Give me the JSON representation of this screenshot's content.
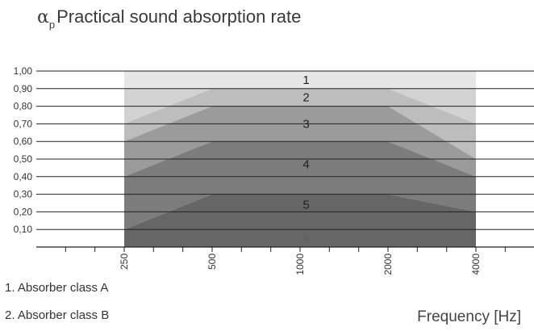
{
  "chart_data": {
    "type": "area",
    "title_symbol": "α",
    "title_subscript": "p",
    "title_text": "Practical sound absorption rate",
    "xlabel": "Frequency [Hz]",
    "x_categories": [
      "250",
      "500",
      "1000",
      "2000",
      "4000"
    ],
    "y_ticks": [
      "1,00",
      "0,90",
      "0,80",
      "0,70",
      "0,60",
      "0,50",
      "0,40",
      "0,30",
      "0,20",
      "0,10"
    ],
    "ylim": [
      0,
      1.0
    ],
    "grid": true,
    "bands": [
      {
        "label": "1",
        "color": "#e6e6e6",
        "upper": [
          1.0,
          1.0,
          1.0,
          1.0,
          1.0
        ],
        "lower": [
          0.9,
          0.9,
          0.9,
          0.9,
          0.9
        ]
      },
      {
        "label": "2",
        "color": "#d2d2d2",
        "upper": [
          0.9,
          0.9,
          0.9,
          0.9,
          0.9
        ],
        "lower": [
          0.7,
          0.9,
          0.9,
          0.9,
          0.7
        ]
      },
      {
        "label": "3",
        "color": "#bdbdbd",
        "upper": [
          0.7,
          0.9,
          0.9,
          0.9,
          0.7
        ],
        "lower": [
          0.6,
          0.8,
          0.8,
          0.8,
          0.5
        ]
      },
      {
        "label": "4",
        "color": "#9b9b9b",
        "upper": [
          0.6,
          0.8,
          0.8,
          0.8,
          0.5
        ],
        "lower": [
          0.4,
          0.6,
          0.6,
          0.6,
          0.4
        ]
      },
      {
        "label": "5",
        "color": "#7c7c7c",
        "upper": [
          0.4,
          0.6,
          0.6,
          0.6,
          0.4
        ],
        "lower": [
          0.1,
          0.3,
          0.3,
          0.3,
          0.2
        ]
      },
      {
        "label": "6",
        "color": "#666666",
        "upper": [
          0.1,
          0.3,
          0.3,
          0.3,
          0.2
        ],
        "lower": [
          0.0,
          0.0,
          0.0,
          0.0,
          0.0
        ]
      }
    ],
    "band_labels": [
      {
        "text": "1",
        "y": 0.95
      },
      {
        "text": "2",
        "y": 0.85
      },
      {
        "text": "3",
        "y": 0.7
      },
      {
        "text": "4",
        "y": 0.47
      },
      {
        "text": "5",
        "y": 0.24
      },
      {
        "text": "6",
        "y": 0.05
      }
    ]
  },
  "legend": {
    "class_a": "1. Absorber class A",
    "class_b": "2. Absorber class B"
  }
}
